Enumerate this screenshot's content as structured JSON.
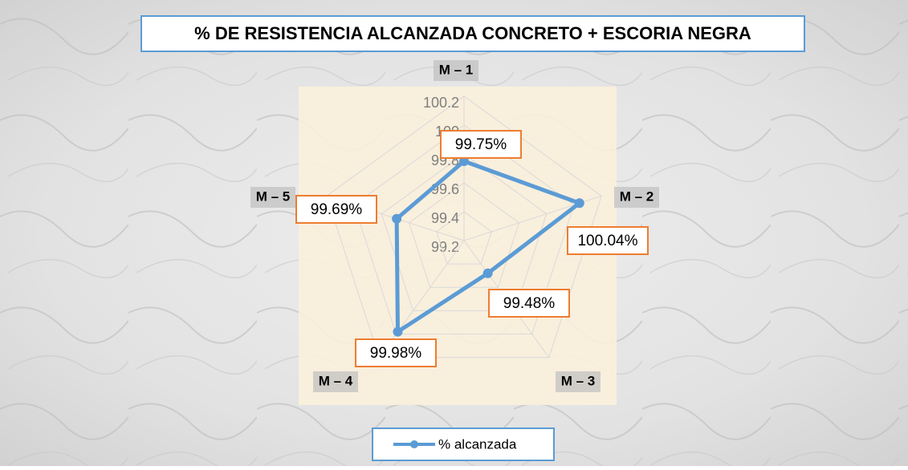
{
  "chart_data": {
    "type": "radar",
    "title": "% DE RESISTENCIA ALCANZADA CONCRETO + ESCORIA NEGRA",
    "categories": [
      "M – 1",
      "M – 2",
      "M – 3",
      "M – 4",
      "M – 5"
    ],
    "series": [
      {
        "name": "% alcanzada",
        "color": "#5b9bd5",
        "values": [
          99.75,
          100.04,
          99.48,
          99.98,
          99.69
        ],
        "value_labels": [
          "99.75%",
          "100.04%",
          "99.48%",
          "99.98%",
          "99.69%"
        ]
      }
    ],
    "ylim": [
      99.2,
      100.2
    ],
    "yticks": [
      99.2,
      99.4,
      99.6,
      99.8,
      100,
      100.2
    ],
    "grid": true
  }
}
